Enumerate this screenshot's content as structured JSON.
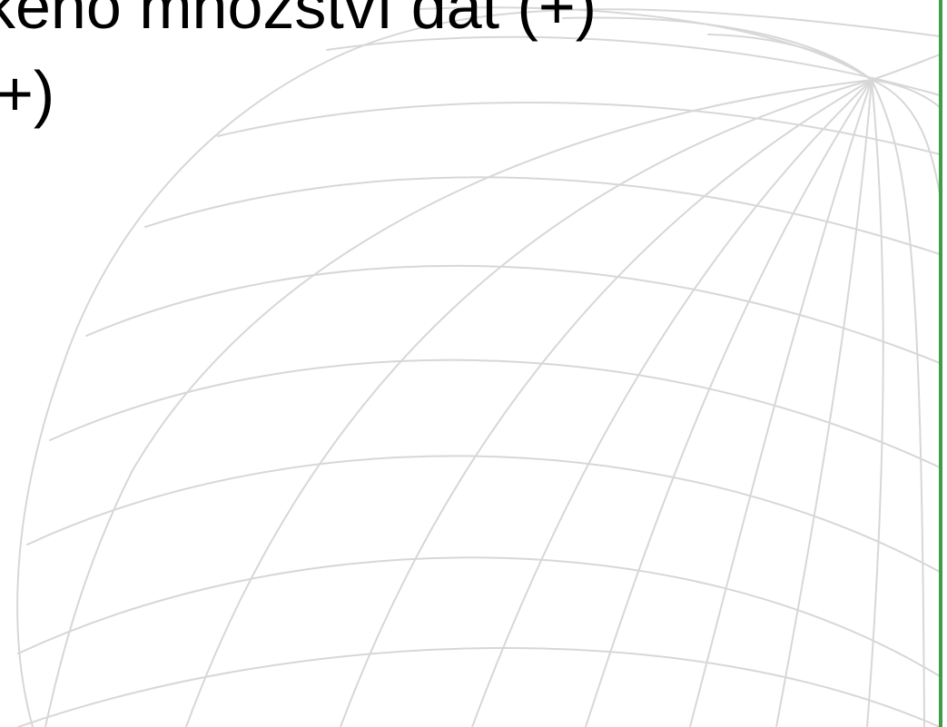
{
  "slide": {
    "line1": "keno množství dat (+)",
    "line2": "+)"
  },
  "colors": {
    "background": "#ffffff",
    "text": "#000000",
    "globe_lines": "#d7d7d7",
    "edge_accent": "#3f9e45"
  },
  "decoration": {
    "globe_icon": "wireframe-globe-icon"
  }
}
